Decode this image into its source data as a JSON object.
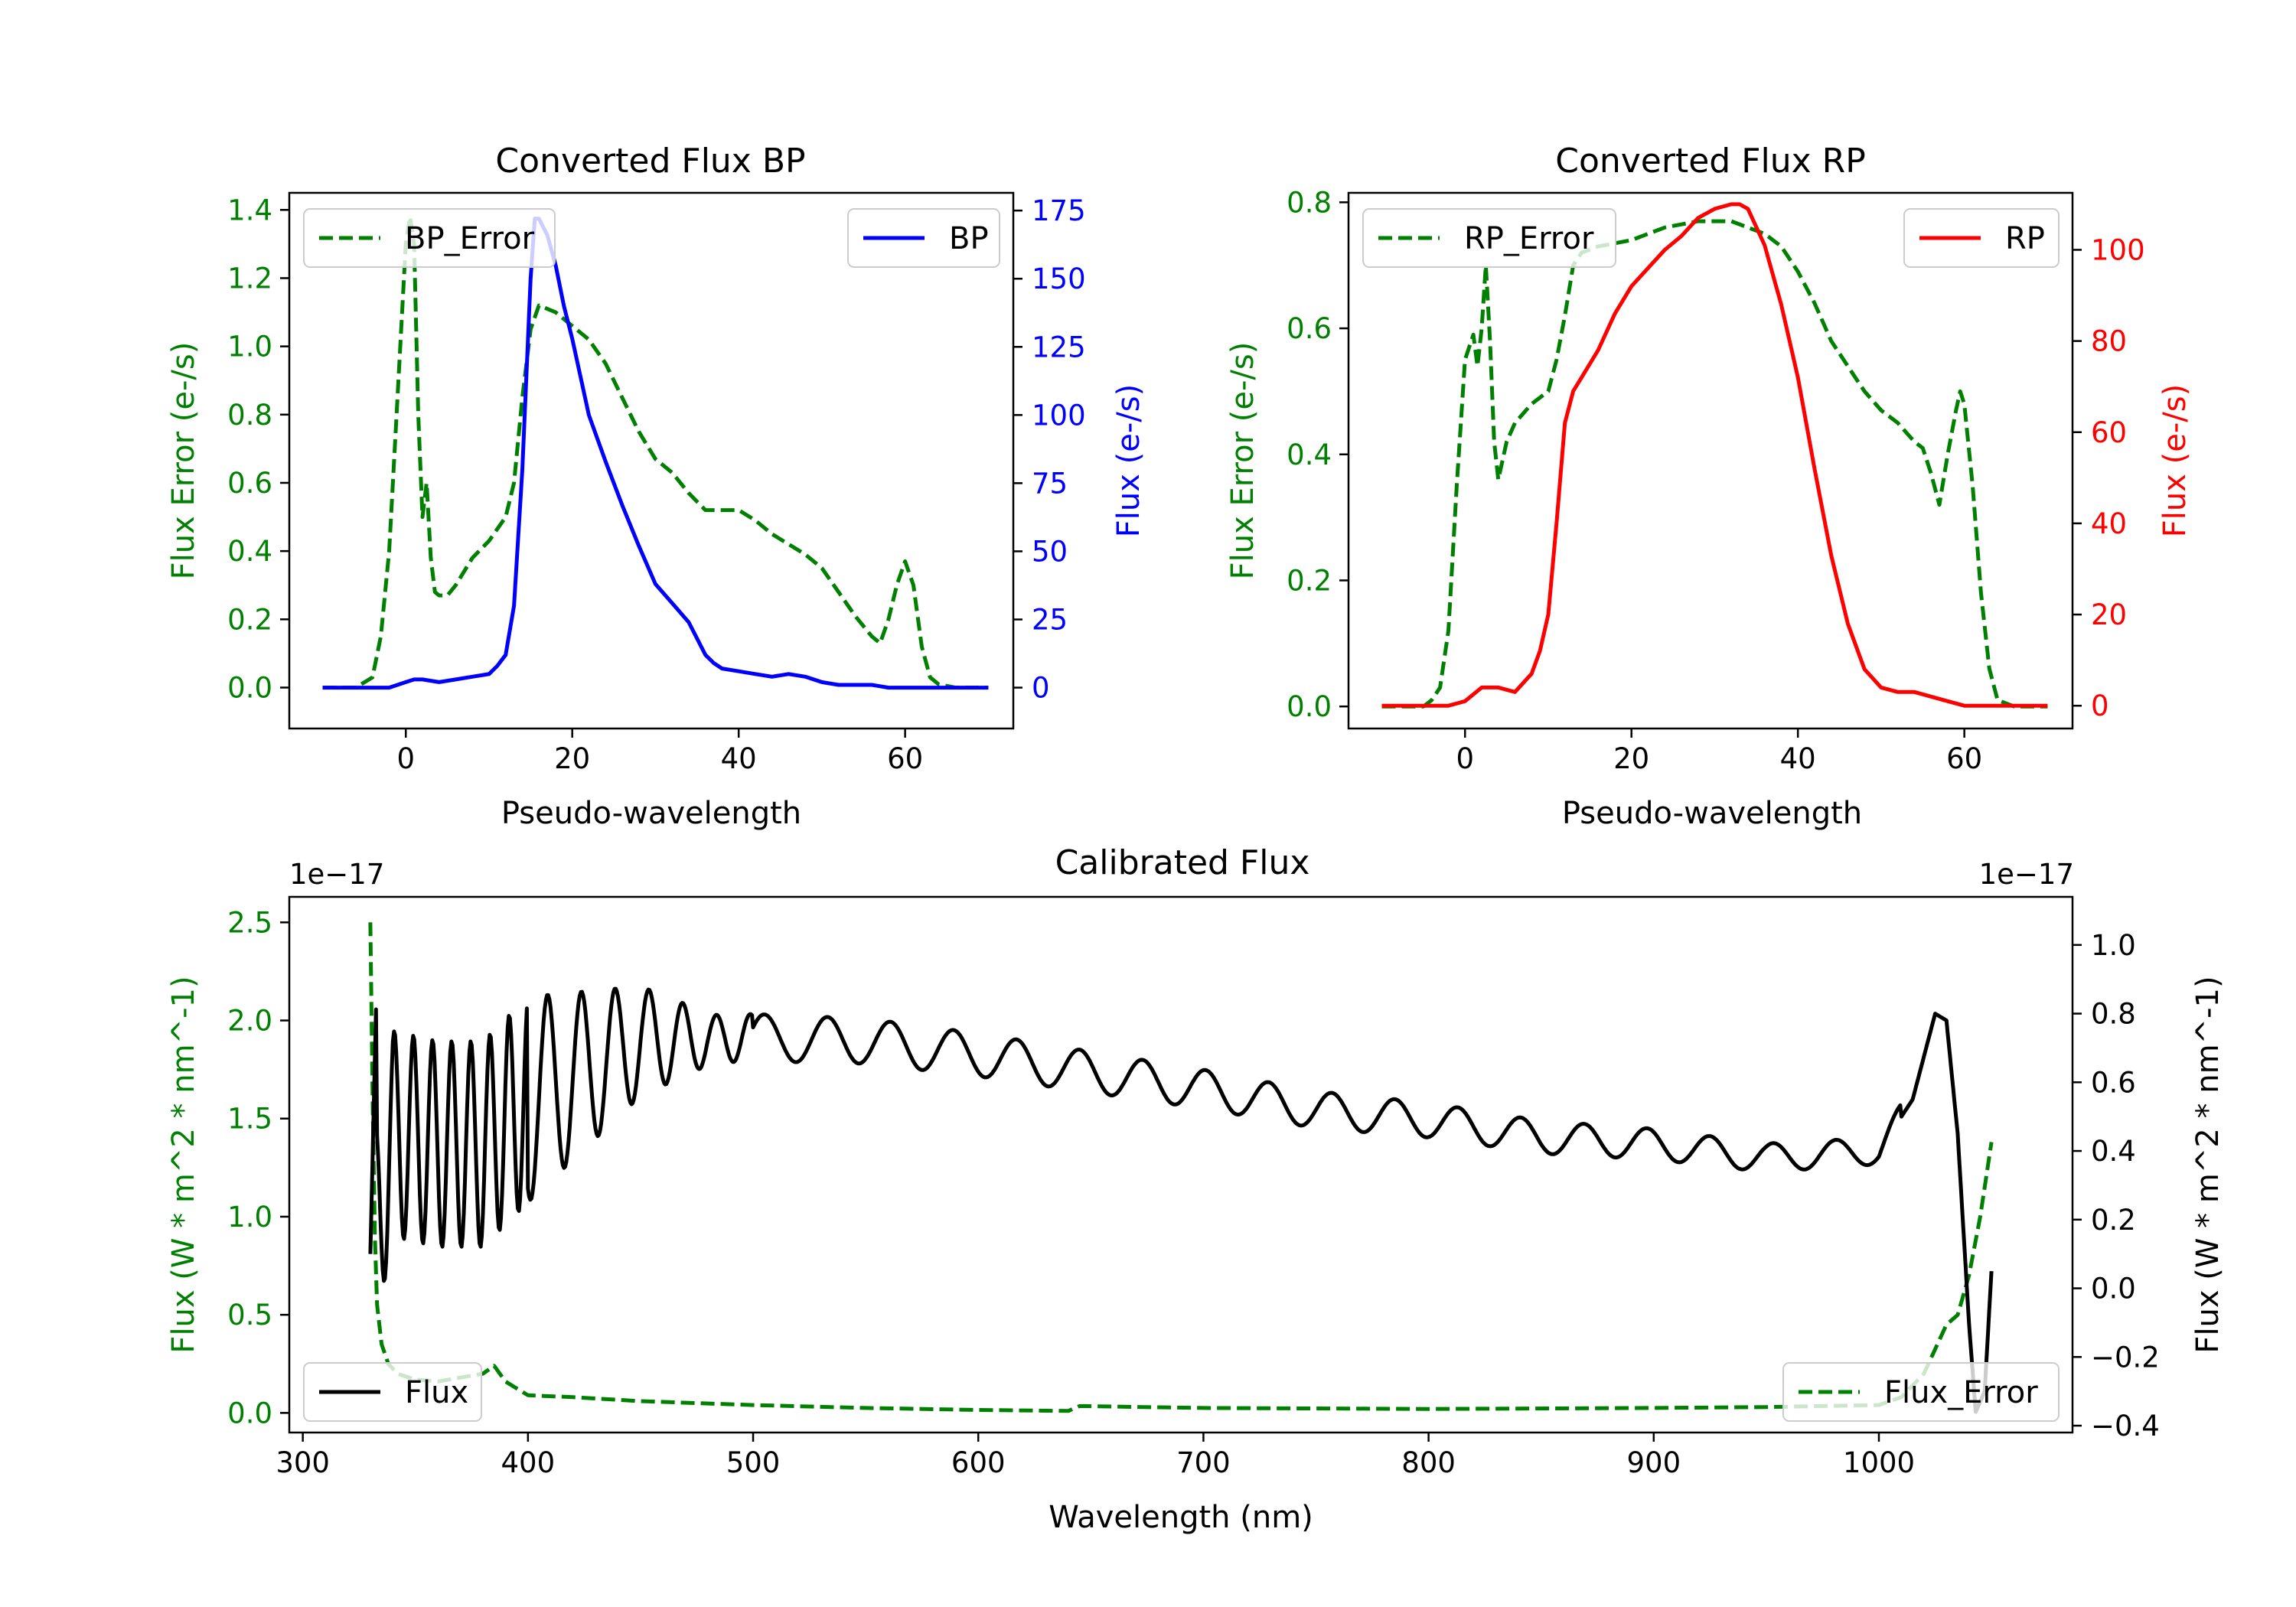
{
  "figure": {
    "colors": {
      "green": "#008000",
      "blue": "#0000ff",
      "red": "#ff0000",
      "black": "#000000"
    }
  },
  "chart_data": [
    {
      "type": "line",
      "title": "Converted Flux BP",
      "xlabel": "Pseudo-wavelength",
      "ylabel_left": "Flux Error (e-/s)",
      "ylabel_right": "Flux (e-/s)",
      "xlim": [
        -14,
        73
      ],
      "ylim_left": [
        -0.12,
        1.45
      ],
      "ylim_right": [
        -15,
        181.5
      ],
      "xticks": [
        0,
        20,
        40,
        60
      ],
      "yticks_left": [
        0.0,
        0.2,
        0.4,
        0.6,
        0.8,
        1.0,
        1.2,
        1.4
      ],
      "yticks_left_labels": [
        "0.0",
        "0.2",
        "0.4",
        "0.6",
        "0.8",
        "1.0",
        "1.2",
        "1.4"
      ],
      "yticks_right": [
        0,
        25,
        50,
        75,
        100,
        125,
        150,
        175
      ],
      "yticks_right_labels": [
        "0",
        "25",
        "50",
        "75",
        "100",
        "125",
        "150",
        "175"
      ],
      "legend_left": {
        "label": "BP_Error",
        "style": "dashed",
        "color": "#008000",
        "placement": "upper-left"
      },
      "legend_right": {
        "label": "BP",
        "style": "solid",
        "color": "#0000ff",
        "placement": "upper-right"
      },
      "series": [
        {
          "name": "BP_Error",
          "axis": "left",
          "style": "dashed",
          "color": "#008000",
          "x": [
            -10,
            -6,
            -4,
            -3,
            -2,
            -1,
            0,
            0.5,
            1,
            1.5,
            2,
            2.5,
            3,
            3.5,
            4,
            5,
            6,
            8,
            10,
            12,
            13,
            14,
            15,
            16,
            18,
            20,
            22,
            24,
            26,
            28,
            30,
            32,
            34,
            36,
            38,
            40,
            42,
            44,
            46,
            48,
            50,
            52,
            54,
            56,
            57,
            58,
            59,
            60,
            61,
            62,
            63,
            64,
            66,
            68,
            70
          ],
          "y": [
            0.0,
            0.0,
            0.03,
            0.15,
            0.4,
            0.85,
            1.3,
            1.38,
            1.3,
            0.8,
            0.5,
            0.6,
            0.38,
            0.28,
            0.27,
            0.27,
            0.3,
            0.38,
            0.43,
            0.5,
            0.6,
            0.85,
            1.05,
            1.12,
            1.1,
            1.06,
            1.02,
            0.95,
            0.85,
            0.75,
            0.67,
            0.63,
            0.57,
            0.52,
            0.52,
            0.52,
            0.49,
            0.45,
            0.42,
            0.39,
            0.35,
            0.28,
            0.21,
            0.15,
            0.13,
            0.2,
            0.3,
            0.37,
            0.3,
            0.12,
            0.03,
            0.01,
            0.0,
            0.0,
            0.0
          ]
        },
        {
          "name": "BP",
          "axis": "right",
          "style": "solid",
          "color": "#0000ff",
          "x": [
            -10,
            -4,
            -2,
            0,
            1,
            2,
            4,
            6,
            8,
            10,
            11,
            12,
            13,
            14,
            15,
            15.5,
            16,
            17,
            18,
            19,
            20,
            22,
            24,
            26,
            28,
            30,
            32,
            34,
            36,
            37,
            38,
            40,
            42,
            44,
            46,
            48,
            50,
            52,
            54,
            56,
            58,
            60,
            62,
            64,
            66,
            68,
            70
          ],
          "y": [
            0,
            0,
            0,
            2,
            3,
            3,
            2,
            3,
            4,
            5,
            8,
            12,
            30,
            80,
            150,
            172,
            172,
            166,
            155,
            140,
            128,
            100,
            83,
            67,
            52,
            38,
            31,
            24,
            12,
            9,
            7,
            6,
            5,
            4,
            5,
            4,
            2,
            1,
            1,
            1,
            0,
            0,
            0,
            0,
            0,
            0,
            0
          ]
        }
      ]
    },
    {
      "type": "line",
      "title": "Converted Flux RP",
      "xlabel": "Pseudo-wavelength",
      "ylabel_left": "Flux Error (e-/s)",
      "ylabel_right": "Flux (e-/s)",
      "xlim": [
        -14,
        73
      ],
      "ylim_left": [
        -0.035,
        0.815
      ],
      "ylim_right": [
        -5,
        112.5
      ],
      "xticks": [
        0,
        20,
        40,
        60
      ],
      "yticks_left": [
        0.0,
        0.2,
        0.4,
        0.6,
        0.8
      ],
      "yticks_left_labels": [
        "0.0",
        "0.2",
        "0.4",
        "0.6",
        "0.8"
      ],
      "yticks_right": [
        0,
        20,
        40,
        60,
        80,
        100
      ],
      "yticks_right_labels": [
        "0",
        "20",
        "40",
        "60",
        "80",
        "100"
      ],
      "legend_left": {
        "label": "RP_Error",
        "style": "dashed",
        "color": "#008000",
        "placement": "upper-left"
      },
      "legend_right": {
        "label": "RP",
        "style": "solid",
        "color": "#ff0000",
        "placement": "upper-right"
      },
      "series": [
        {
          "name": "RP_Error",
          "axis": "left",
          "style": "dashed",
          "color": "#008000",
          "x": [
            -10,
            -5,
            -4,
            -3,
            -2,
            -1,
            0,
            1,
            1.5,
            2,
            2.5,
            3,
            3.5,
            4,
            5,
            6,
            8,
            10,
            11,
            12,
            13,
            14,
            16,
            20,
            24,
            28,
            32,
            34,
            36,
            38,
            40,
            42,
            44,
            46,
            48,
            50,
            52,
            54,
            55,
            56,
            57,
            58,
            59,
            59.5,
            60,
            61,
            62,
            63,
            64,
            66,
            70
          ],
          "y": [
            0.0,
            0.0,
            0.01,
            0.03,
            0.12,
            0.35,
            0.55,
            0.59,
            0.54,
            0.6,
            0.7,
            0.58,
            0.42,
            0.36,
            0.42,
            0.45,
            0.48,
            0.5,
            0.55,
            0.62,
            0.7,
            0.72,
            0.73,
            0.74,
            0.76,
            0.77,
            0.77,
            0.76,
            0.75,
            0.73,
            0.69,
            0.64,
            0.58,
            0.54,
            0.5,
            0.47,
            0.45,
            0.42,
            0.41,
            0.37,
            0.32,
            0.4,
            0.47,
            0.5,
            0.48,
            0.35,
            0.18,
            0.06,
            0.01,
            0.0,
            0.0
          ]
        },
        {
          "name": "RP",
          "axis": "right",
          "style": "solid",
          "color": "#ff0000",
          "x": [
            -10,
            -4,
            -2,
            0,
            2,
            4,
            6,
            7,
            8,
            9,
            10,
            11,
            12,
            13,
            14,
            16,
            18,
            20,
            22,
            24,
            26,
            28,
            30,
            32,
            33,
            34,
            35,
            36,
            38,
            40,
            42,
            44,
            46,
            48,
            50,
            52,
            54,
            56,
            58,
            60,
            62,
            70
          ],
          "y": [
            0,
            0,
            0,
            1,
            4,
            4,
            3,
            5,
            7,
            12,
            20,
            40,
            62,
            69,
            72,
            78,
            86,
            92,
            96,
            100,
            103,
            107,
            109,
            110,
            110,
            109,
            105,
            101,
            88,
            72,
            52,
            33,
            18,
            8,
            4,
            3,
            3,
            2,
            1,
            0,
            0,
            0
          ]
        }
      ]
    },
    {
      "type": "line",
      "title": "Calibrated Flux",
      "xlabel": "Wavelength (nm)",
      "ylabel_left": "Flux (W * m^2 * nm^-1)",
      "ylabel_right": "Flux (W * m^2 * nm^-1)",
      "offset_left": "1e−17",
      "offset_right": "1e−17",
      "xlim": [
        294,
        1086
      ],
      "ylim_left": [
        -0.1,
        2.63
      ],
      "ylim_right": [
        -0.42,
        1.14
      ],
      "xticks": [
        300,
        400,
        500,
        600,
        700,
        800,
        900,
        1000
      ],
      "yticks_left": [
        0.0,
        0.5,
        1.0,
        1.5,
        2.0,
        2.5
      ],
      "yticks_left_labels": [
        "0.0",
        "0.5",
        "1.0",
        "1.5",
        "2.0",
        "2.5"
      ],
      "yticks_right": [
        -0.4,
        -0.2,
        0.0,
        0.2,
        0.4,
        0.6,
        0.8,
        1.0
      ],
      "yticks_right_labels": [
        "−0.4",
        "−0.2",
        "0.0",
        "0.2",
        "0.4",
        "0.6",
        "0.8",
        "1.0"
      ],
      "legend_left": {
        "label": "Flux",
        "style": "solid",
        "color": "#000000",
        "placement": "lower-left"
      },
      "legend_right": {
        "label": "Flux_Error",
        "style": "dashed",
        "color": "#008000",
        "placement": "lower-right"
      },
      "series": [
        {
          "name": "Flux_Error",
          "axis": "left",
          "style": "dashed",
          "color": "#008000",
          "x": [
            330,
            331,
            332,
            333,
            335,
            338,
            342,
            350,
            360,
            370,
            380,
            385,
            390,
            400,
            420,
            450,
            500,
            550,
            600,
            640,
            645,
            700,
            800,
            900,
            950,
            1000,
            1010,
            1020,
            1030,
            1035,
            1040,
            1045,
            1050
          ],
          "y": [
            2.5,
            1.6,
            0.9,
            0.55,
            0.35,
            0.25,
            0.2,
            0.17,
            0.16,
            0.18,
            0.2,
            0.24,
            0.16,
            0.09,
            0.08,
            0.06,
            0.04,
            0.025,
            0.015,
            0.01,
            0.035,
            0.025,
            0.02,
            0.025,
            0.03,
            0.04,
            0.08,
            0.2,
            0.45,
            0.5,
            0.7,
            1.0,
            1.38
          ]
        }
      ]
    }
  ]
}
